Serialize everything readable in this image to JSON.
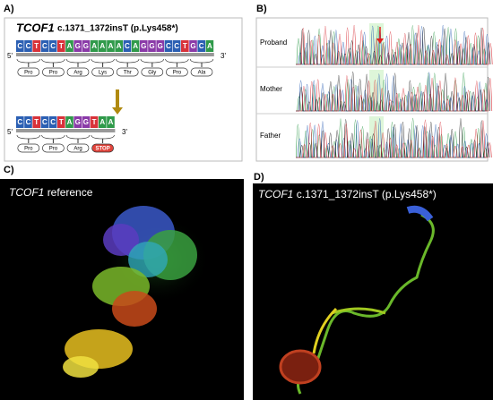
{
  "panel_a": {
    "label": "A)",
    "gene": "TCOF1",
    "variant": "c.1371_1372insT (p.Lys458*)",
    "five_prime": "5'",
    "three_prime": "3'",
    "reference_bases": [
      "C",
      "C",
      "T",
      "C",
      "C",
      "T",
      "A",
      "G",
      "G",
      "A",
      "A",
      "A",
      "A",
      "C",
      "A",
      "G",
      "G",
      "G",
      "C",
      "C",
      "T",
      "G",
      "C",
      "A"
    ],
    "reference_amino_acids": [
      "Pro",
      "Pro",
      "Arg",
      "Lys",
      "Thr",
      "Gly",
      "Pro",
      "Ala"
    ],
    "mutant_bases": [
      "C",
      "C",
      "T",
      "C",
      "C",
      "T",
      "A",
      "G",
      "G",
      "T",
      "A",
      "A"
    ],
    "mutant_amino_acids": [
      "Pro",
      "Pro",
      "Arg",
      "STOP"
    ]
  },
  "panel_b": {
    "label": "B)",
    "rows": [
      "Proband",
      "Mother",
      "Father"
    ]
  },
  "panel_c": {
    "label": "C)",
    "gene": "TCOF1",
    "caption": "reference"
  },
  "panel_d": {
    "label": "D)",
    "gene": "TCOF1",
    "caption": "c.1371_1372insT (p.Lys458*)"
  }
}
